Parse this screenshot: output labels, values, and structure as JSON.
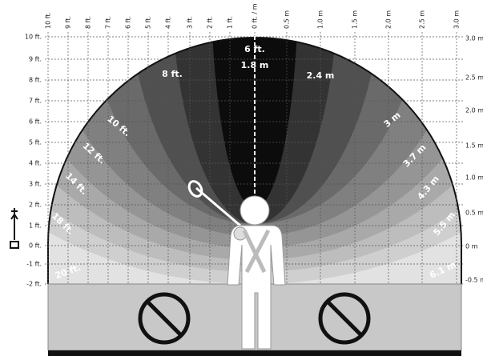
{
  "top_axis": [
    "10 ft.",
    "9 ft.",
    "8 ft.",
    "7 ft.",
    "6 ft.",
    "5 ft.",
    "4 ft.",
    "3 ft.",
    "2 ft.",
    "1 ft.",
    "0 ft. / m",
    "0.5 m",
    "1.0 m",
    "1.5 m",
    "2.0 m",
    "2.5 m",
    "3.0 m"
  ],
  "left_axis": [
    "10 ft.",
    "9 ft.",
    "8 ft.",
    "7 ft.",
    "6 ft.",
    "5 ft.",
    "4 ft.",
    "3 ft.",
    "2 ft.",
    "1 ft.",
    "0 ft.",
    "-1 ft.",
    "-2 ft."
  ],
  "right_axis": [
    "3.0 m",
    "2.5 m",
    "2.0 m",
    "1.5 m",
    "1.0 m",
    "0.5 m",
    "0 m",
    "-0.5 m"
  ],
  "zones": [
    "6 ft.",
    "1.8 m",
    "8 ft.",
    "2.4 m",
    "10 ft.",
    "3 m",
    "12 ft.",
    "3.7 m",
    "14 ft.",
    "4.3 m",
    "18 ft.",
    "5.5 m",
    "20 ft.",
    "6.1 m"
  ]
}
